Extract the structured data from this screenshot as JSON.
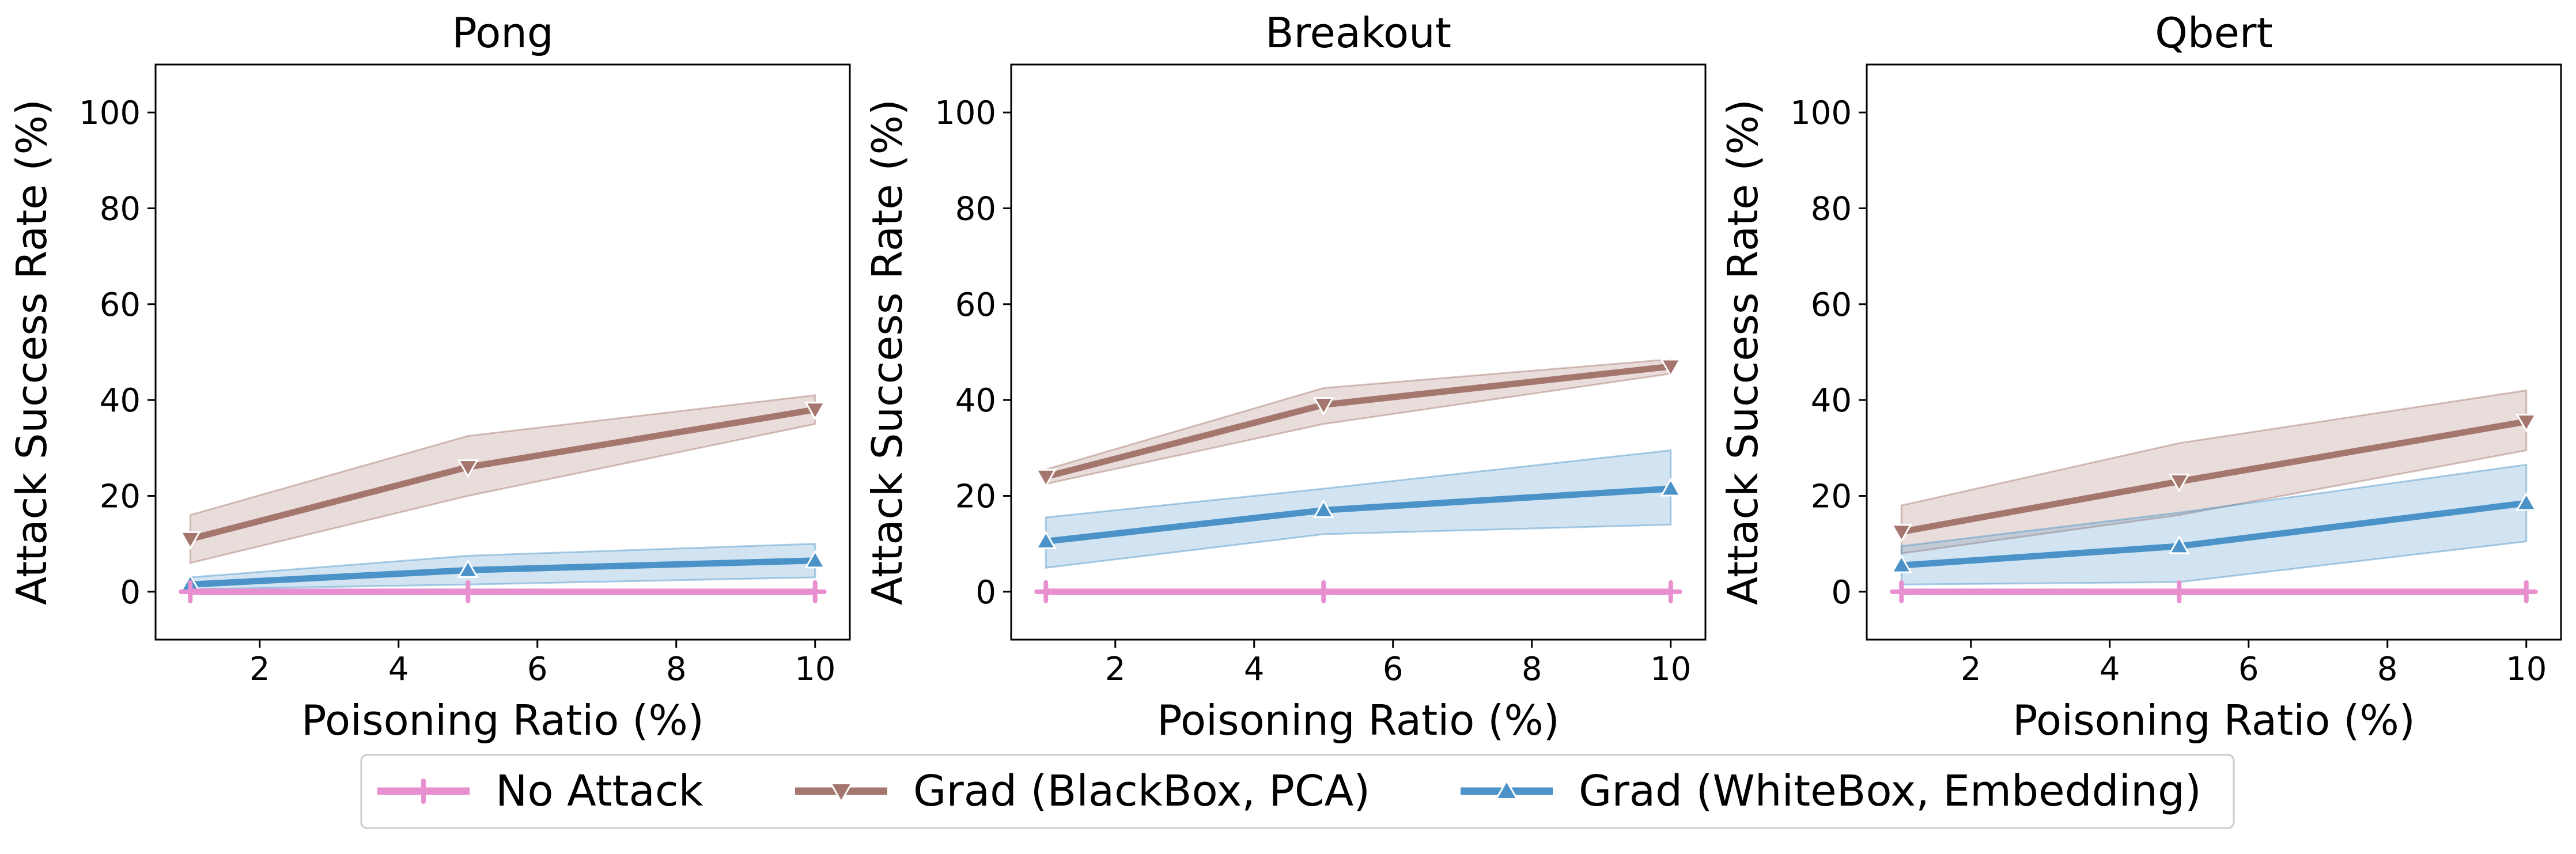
{
  "legend": {
    "items": [
      {
        "label": "No Attack",
        "color": "#e88fd0",
        "marker": "plus"
      },
      {
        "label": "Grad (BlackBox, PCA)",
        "color": "#a4766d",
        "marker": "triangle-down"
      },
      {
        "label": "Grad (WhiteBox, Embedding)",
        "color": "#4a92c8",
        "marker": "triangle-up"
      }
    ]
  },
  "chart_data": [
    {
      "type": "line",
      "title": "Pong",
      "xlabel": "Poisoning Ratio (%)",
      "ylabel": "Attack Success Rate (%)",
      "xlim": [
        0.5,
        10.5
      ],
      "ylim": [
        -10,
        110
      ],
      "xticks": [
        2,
        4,
        6,
        8,
        10
      ],
      "yticks": [
        0,
        20,
        40,
        60,
        80,
        100
      ],
      "x": [
        1,
        5,
        10
      ],
      "series": [
        {
          "name": "No Attack",
          "values": [
            0,
            0,
            0
          ],
          "lower": [
            0,
            0,
            0
          ],
          "upper": [
            0,
            0,
            0
          ]
        },
        {
          "name": "Grad (BlackBox, PCA)",
          "values": [
            11,
            26,
            38
          ],
          "lower": [
            6,
            20,
            35
          ],
          "upper": [
            16,
            32.5,
            41
          ]
        },
        {
          "name": "Grad (WhiteBox, Embedding)",
          "values": [
            1.5,
            4.5,
            6.5
          ],
          "lower": [
            0.5,
            1.5,
            3
          ],
          "upper": [
            3,
            7.5,
            10
          ]
        }
      ]
    },
    {
      "type": "line",
      "title": "Breakout",
      "xlabel": "Poisoning Ratio (%)",
      "ylabel": "Attack Success Rate (%)",
      "xlim": [
        0.5,
        10.5
      ],
      "ylim": [
        -10,
        110
      ],
      "xticks": [
        2,
        4,
        6,
        8,
        10
      ],
      "yticks": [
        0,
        20,
        40,
        60,
        80,
        100
      ],
      "x": [
        1,
        5,
        10
      ],
      "series": [
        {
          "name": "No Attack",
          "values": [
            0,
            0,
            0
          ],
          "lower": [
            0,
            0,
            0
          ],
          "upper": [
            0,
            0,
            0
          ]
        },
        {
          "name": "Grad (BlackBox, PCA)",
          "values": [
            24,
            39,
            47
          ],
          "lower": [
            22.5,
            35,
            45.5
          ],
          "upper": [
            25.5,
            42.5,
            48.5
          ]
        },
        {
          "name": "Grad (WhiteBox, Embedding)",
          "values": [
            10.5,
            17,
            21.5
          ],
          "lower": [
            5,
            12,
            14
          ],
          "upper": [
            15.5,
            21.5,
            29.5
          ]
        }
      ]
    },
    {
      "type": "line",
      "title": "Qbert",
      "xlabel": "Poisoning Ratio (%)",
      "ylabel": "Attack Success Rate (%)",
      "xlim": [
        0.5,
        10.5
      ],
      "ylim": [
        -10,
        110
      ],
      "xticks": [
        2,
        4,
        6,
        8,
        10
      ],
      "yticks": [
        0,
        20,
        40,
        60,
        80,
        100
      ],
      "x": [
        1,
        5,
        10
      ],
      "series": [
        {
          "name": "No Attack",
          "values": [
            0,
            0,
            0
          ],
          "lower": [
            0,
            0,
            0
          ],
          "upper": [
            0,
            0,
            0
          ]
        },
        {
          "name": "Grad (BlackBox, PCA)",
          "values": [
            12.5,
            23,
            35.5
          ],
          "lower": [
            8,
            16,
            29.5
          ],
          "upper": [
            18,
            31,
            42
          ]
        },
        {
          "name": "Grad (WhiteBox, Embedding)",
          "values": [
            5.5,
            9.5,
            18.5
          ],
          "lower": [
            1.5,
            2,
            10.5
          ],
          "upper": [
            9.5,
            16.5,
            26.5
          ]
        }
      ]
    }
  ]
}
